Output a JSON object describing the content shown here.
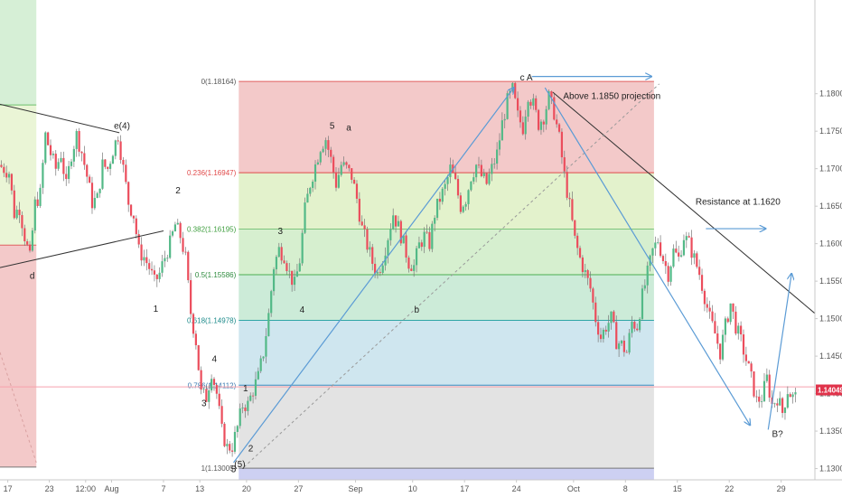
{
  "chart_data": {
    "type": "candlestick",
    "instrument_price_axis": {
      "ticks": [
        "1.18000",
        "1.17500",
        "1.17000",
        "1.16500",
        "1.16000",
        "1.15500",
        "1.15000",
        "1.14500",
        "1.14000",
        "1.13500",
        "1.13000"
      ],
      "tick_values": [
        1.18,
        1.175,
        1.17,
        1.165,
        1.16,
        1.155,
        1.15,
        1.145,
        1.14,
        1.135,
        1.13
      ],
      "ylim": [
        1.1285,
        1.1925
      ]
    },
    "time_axis": {
      "labels": [
        "17",
        "23",
        "12:00",
        "Aug",
        "7",
        "13",
        "20",
        "27",
        "Sep",
        "10",
        "17",
        "24",
        "Oct",
        "8",
        "15",
        "22",
        "29"
      ],
      "positions": [
        1.5,
        9.5,
        16.5,
        21.5,
        31.5,
        38.5,
        47.5,
        57.5,
        68.5,
        79.5,
        89.5,
        99.5,
        110.5,
        120.5,
        130.5,
        140.5,
        150.5
      ],
      "xlim": [
        0,
        157
      ]
    },
    "current_price": {
      "value": 1.14049,
      "label": "1.14049",
      "color": "#e0334b"
    },
    "horizontal_line": {
      "value": 1.1409,
      "color": "#f7a1ad"
    },
    "fib_retracement": {
      "x_start": 46,
      "x_end": 126,
      "levels": [
        {
          "ratio": "0",
          "label": "0(1.18164)",
          "value": 1.18164,
          "fill": "#f3c9c9",
          "line": "#e06060",
          "text_color": "#555555"
        },
        {
          "ratio": "0.236",
          "label": "0.236(1.16947)",
          "value": 1.16947,
          "fill": "#e3f2cc",
          "line": "#e04848",
          "text_color": "#e04848"
        },
        {
          "ratio": "0.382",
          "label": "0.382(1.16195)",
          "value": 1.16195,
          "fill": "#d6efcf",
          "line": "#7cc47c",
          "text_color": "#3e9e3e"
        },
        {
          "ratio": "0.5",
          "label": "0.5(1.15586)",
          "value": 1.15586,
          "fill": "#ccebd8",
          "line": "#4caf50",
          "text_color": "#2e8b3e"
        },
        {
          "ratio": "0.618",
          "label": "0.618(1.14978)",
          "value": 1.14978,
          "fill": "#cfe6ef",
          "line": "#2fa5a5",
          "text_color": "#1c8a8a"
        },
        {
          "ratio": "0.786",
          "label": "0.786(1.14112)",
          "value": 1.14112,
          "fill": "#e3e3e3",
          "line": "#3a8ec2",
          "text_color": "#3a7ab0"
        },
        {
          "ratio": "1",
          "label": "1(1.13005)",
          "value": 1.13005,
          "fill": "#cdd0f2",
          "line": "#777777",
          "text_color": "#555555"
        }
      ],
      "extension_bottom": 1.1285
    },
    "left_boxes": [
      {
        "x0": 0,
        "x1": 7,
        "top": 1.1925,
        "bottom": 1.1785,
        "color": "#d6efd6"
      },
      {
        "x0": 0,
        "x1": 7,
        "top": 1.1785,
        "bottom": 1.1598,
        "color": "#eaf5d6"
      },
      {
        "x0": 0,
        "x1": 7,
        "top": 1.1598,
        "bottom": 1.1302,
        "color": "#f3c9c9"
      }
    ],
    "wave_labels": [
      {
        "text": "e(4)",
        "x": 23.5,
        "y": 1.1753
      },
      {
        "text": "d",
        "x": 6.2,
        "y": 1.1553
      },
      {
        "text": "2",
        "x": 34.3,
        "y": 1.1667
      },
      {
        "text": "1",
        "x": 30,
        "y": 1.1509
      },
      {
        "text": "4",
        "x": 41.3,
        "y": 1.1442
      },
      {
        "text": "3",
        "x": 39.3,
        "y": 1.1383
      },
      {
        "text": "2",
        "x": 48.3,
        "y": 1.1323
      },
      {
        "text": "1",
        "x": 47.3,
        "y": 1.1403
      },
      {
        "text": "5",
        "x": 45,
        "y": 1.1295
      },
      {
        "text": "(5)",
        "x": 46.2,
        "y": 1.1302
      },
      {
        "text": "3",
        "x": 54,
        "y": 1.1613
      },
      {
        "text": "4",
        "x": 58.2,
        "y": 1.1508
      },
      {
        "text": "5",
        "x": 64,
        "y": 1.1753
      },
      {
        "text": "a",
        "x": 67.2,
        "y": 1.1751
      },
      {
        "text": "b",
        "x": 80.3,
        "y": 1.1508
      },
      {
        "text": "c A",
        "x": 101.4,
        "y": 1.1818
      },
      {
        "text": "B?",
        "x": 149.8,
        "y": 1.1342
      }
    ],
    "annotations": [
      {
        "text": "Above 1.1850 projection",
        "x": 108.5,
        "y": 1.1793
      },
      {
        "text": "Resistance at 1.1620",
        "x": 134,
        "y": 1.1652
      }
    ],
    "trendlines": [
      {
        "from": [
          0,
          1.1786
        ],
        "to": [
          23,
          1.1748
        ],
        "color": "#333333",
        "style": "solid"
      },
      {
        "from": [
          0,
          1.1568
        ],
        "to": [
          31.5,
          1.1617
        ],
        "color": "#333333",
        "style": "solid"
      },
      {
        "from": [
          106.5,
          1.1802
        ],
        "to": [
          157,
          1.1507
        ],
        "color": "#333333",
        "style": "solid"
      },
      {
        "from": [
          47,
          1.1302
        ],
        "to": [
          127,
          1.1813
        ],
        "color": "#999999",
        "style": "dashed"
      },
      {
        "from": [
          0,
          1.1455
        ],
        "to": [
          7,
          1.1308
        ],
        "color": "#d9a0a0",
        "style": "dashed"
      }
    ],
    "projection_arrows": [
      {
        "points": [
          [
            45,
            1.1308
          ],
          [
            99,
            1.1808
          ]
        ],
        "color": "#5b9bd5"
      },
      {
        "points": [
          [
            105,
            1.1808
          ],
          [
            144.5,
            1.1358
          ]
        ],
        "color": "#5b9bd5"
      },
      {
        "points": [
          [
            148,
            1.1352
          ],
          [
            152.5,
            1.156
          ]
        ],
        "color": "#5b9bd5"
      },
      {
        "points": [
          [
            102.5,
            1.1823
          ],
          [
            125.5,
            1.1823
          ]
        ],
        "color": "#5b9bd5"
      },
      {
        "points": [
          [
            136,
            1.162
          ],
          [
            147.5,
            1.162
          ]
        ],
        "color": "#5b9bd5"
      }
    ],
    "price_path": [
      [
        0,
        1.1705
      ],
      [
        2,
        1.1695
      ],
      [
        3,
        1.164
      ],
      [
        4,
        1.1648
      ],
      [
        5,
        1.161
      ],
      [
        6,
        1.158
      ],
      [
        7,
        1.1653
      ],
      [
        8,
        1.1666
      ],
      [
        9,
        1.1745
      ],
      [
        10,
        1.172
      ],
      [
        11,
        1.17
      ],
      [
        12,
        1.172
      ],
      [
        13,
        1.1676
      ],
      [
        14,
        1.172
      ],
      [
        15,
        1.1745
      ],
      [
        16,
        1.1722
      ],
      [
        17,
        1.169
      ],
      [
        18,
        1.1655
      ],
      [
        19,
        1.166
      ],
      [
        20,
        1.1705
      ],
      [
        21,
        1.17
      ],
      [
        22,
        1.1725
      ],
      [
        23,
        1.1745
      ],
      [
        24,
        1.17
      ],
      [
        25,
        1.1655
      ],
      [
        26,
        1.1638
      ],
      [
        27,
        1.159
      ],
      [
        28,
        1.1582
      ],
      [
        29,
        1.1568
      ],
      [
        30,
        1.1548
      ],
      [
        31,
        1.156
      ],
      [
        32,
        1.1582
      ],
      [
        33,
        1.16
      ],
      [
        34,
        1.1625
      ],
      [
        35,
        1.161
      ],
      [
        36,
        1.158
      ],
      [
        37,
        1.1508
      ],
      [
        38,
        1.147
      ],
      [
        39,
        1.14
      ],
      [
        40,
        1.1395
      ],
      [
        41,
        1.143
      ],
      [
        42,
        1.14
      ],
      [
        43,
        1.135
      ],
      [
        44,
        1.1328
      ],
      [
        45,
        1.133
      ],
      [
        46,
        1.1355
      ],
      [
        47,
        1.1385
      ],
      [
        48,
        1.1385
      ],
      [
        49,
        1.1405
      ],
      [
        50,
        1.1422
      ],
      [
        51,
        1.1455
      ],
      [
        52,
        1.1505
      ],
      [
        53,
        1.157
      ],
      [
        54,
        1.1592
      ],
      [
        55,
        1.1585
      ],
      [
        56,
        1.156
      ],
      [
        57,
        1.1545
      ],
      [
        58,
        1.1578
      ],
      [
        59,
        1.1645
      ],
      [
        60,
        1.168
      ],
      [
        61,
        1.1705
      ],
      [
        62,
        1.173
      ],
      [
        63,
        1.174
      ],
      [
        64,
        1.1712
      ],
      [
        65,
        1.168
      ],
      [
        66,
        1.1705
      ],
      [
        67,
        1.17
      ],
      [
        68,
        1.169
      ],
      [
        69,
        1.166
      ],
      [
        70,
        1.162
      ],
      [
        71,
        1.1598
      ],
      [
        72,
        1.1575
      ],
      [
        73,
        1.156
      ],
      [
        74,
        1.158
      ],
      [
        75,
        1.161
      ],
      [
        76,
        1.164
      ],
      [
        77,
        1.1622
      ],
      [
        78,
        1.16
      ],
      [
        79,
        1.1575
      ],
      [
        80,
        1.157
      ],
      [
        81,
        1.1598
      ],
      [
        82,
        1.161
      ],
      [
        83,
        1.16
      ],
      [
        84,
        1.164
      ],
      [
        85,
        1.166
      ],
      [
        86,
        1.1675
      ],
      [
        87,
        1.17
      ],
      [
        88,
        1.168
      ],
      [
        89,
        1.165
      ],
      [
        90,
        1.166
      ],
      [
        91,
        1.169
      ],
      [
        92,
        1.1705
      ],
      [
        93,
        1.169
      ],
      [
        94,
        1.168
      ],
      [
        95,
        1.17
      ],
      [
        96,
        1.172
      ],
      [
        97,
        1.176
      ],
      [
        98,
        1.179
      ],
      [
        99,
        1.1805
      ],
      [
        100,
        1.177
      ],
      [
        101,
        1.1755
      ],
      [
        102,
        1.18
      ],
      [
        103,
        1.1785
      ],
      [
        104,
        1.176
      ],
      [
        105,
        1.177
      ],
      [
        106,
        1.1795
      ],
      [
        107,
        1.1775
      ],
      [
        108,
        1.174
      ],
      [
        109,
        1.169
      ],
      [
        110,
        1.165
      ],
      [
        111,
        1.1605
      ],
      [
        112,
        1.158
      ],
      [
        113,
        1.156
      ],
      [
        114,
        1.154
      ],
      [
        115,
        1.15
      ],
      [
        116,
        1.1475
      ],
      [
        117,
        1.149
      ],
      [
        118,
        1.15
      ],
      [
        119,
        1.147
      ],
      [
        120,
        1.1465
      ],
      [
        121,
        1.1455
      ],
      [
        122,
        1.1495
      ],
      [
        123,
        1.149
      ],
      [
        124,
        1.153
      ],
      [
        125,
        1.156
      ],
      [
        126,
        1.159
      ],
      [
        127,
        1.1605
      ],
      [
        128,
        1.158
      ],
      [
        129,
        1.156
      ],
      [
        130,
        1.159
      ],
      [
        131,
        1.158
      ],
      [
        132,
        1.161
      ],
      [
        133,
        1.16
      ],
      [
        134,
        1.158
      ],
      [
        135,
        1.156
      ],
      [
        136,
        1.153
      ],
      [
        137,
        1.15
      ],
      [
        138,
        1.148
      ],
      [
        139,
        1.1455
      ],
      [
        140,
        1.149
      ],
      [
        141,
        1.152
      ],
      [
        142,
        1.149
      ],
      [
        143,
        1.147
      ],
      [
        144,
        1.1445
      ],
      [
        145,
        1.142
      ],
      [
        146,
        1.139
      ],
      [
        147,
        1.1395
      ],
      [
        148,
        1.142
      ],
      [
        149,
        1.1385
      ],
      [
        150,
        1.1395
      ],
      [
        151,
        1.1375
      ],
      [
        152,
        1.1405
      ],
      [
        153,
        1.1395
      ]
    ],
    "candle_colors": {
      "up": "#53b987",
      "down": "#eb4d5c",
      "wick": "#777777"
    },
    "grid": false,
    "legend": "none"
  }
}
